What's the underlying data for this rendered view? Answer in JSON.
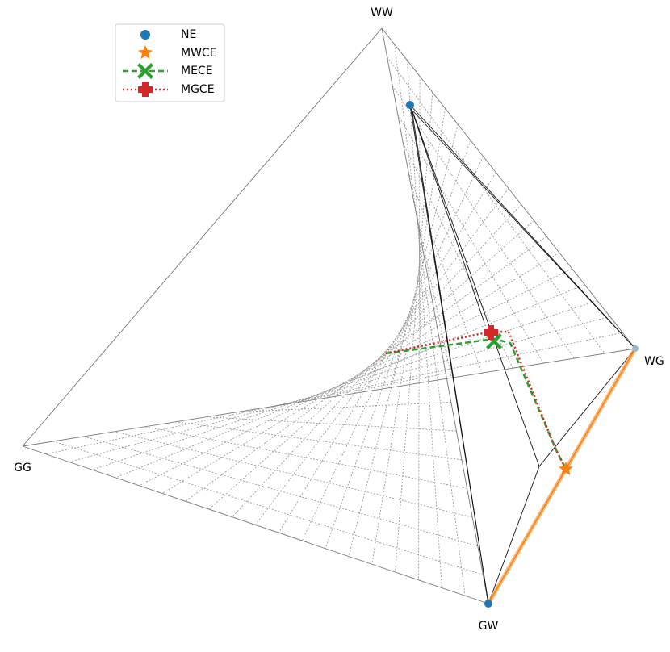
{
  "vertices": {
    "ww": "WW",
    "wg": "WG",
    "gg": "GG",
    "gw": "GW"
  },
  "legend": [
    "NE",
    "MWCE",
    "MECE",
    "MGCE"
  ]
}
